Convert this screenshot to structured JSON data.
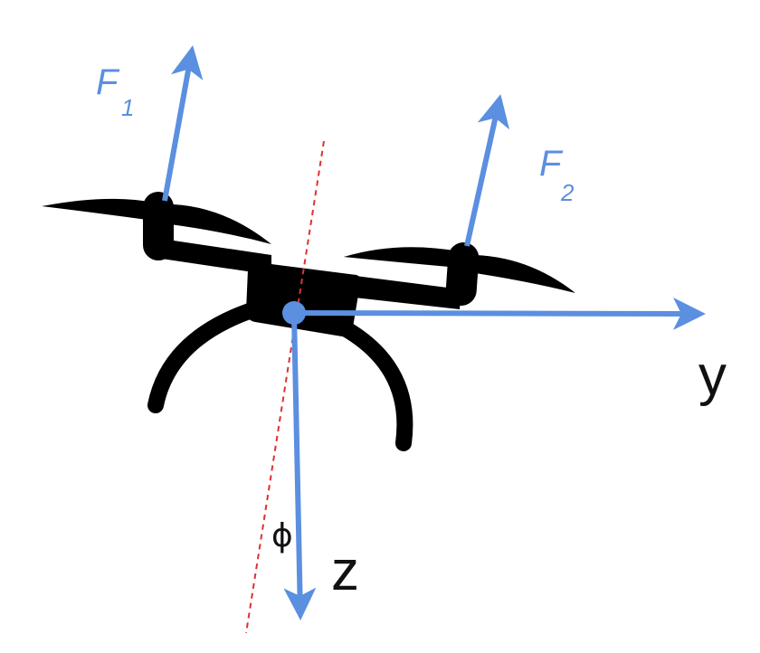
{
  "colors": {
    "vector": "#5b8fe0",
    "drone": "#000000",
    "tilt_axis": "#e03030",
    "background": "#ffffff"
  },
  "labels": {
    "force1": {
      "main": "F",
      "sub": "1"
    },
    "force2": {
      "main": "F",
      "sub": "2"
    },
    "axis_y": "y",
    "axis_z": "z",
    "angle": "ϕ"
  },
  "icons": {
    "drone": "quadcopter-silhouette-icon",
    "origin": "center-of-mass-dot"
  }
}
